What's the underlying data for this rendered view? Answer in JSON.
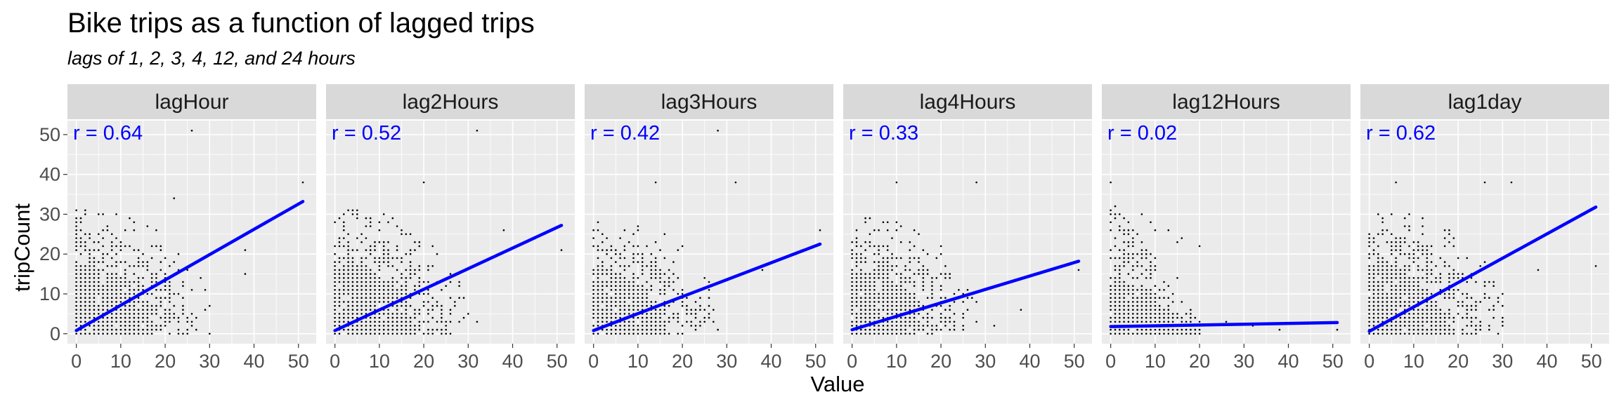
{
  "chart_data": {
    "type": "scatter",
    "title": "Bike trips as a function of lagged trips",
    "subtitle": "lags of 1, 2, 3, 4, 12, and 24 hours",
    "xlabel": "Value",
    "ylabel": "tripCount",
    "xlim": [
      -2,
      54
    ],
    "ylim": [
      -2.5,
      53.5
    ],
    "x_ticks": [
      0,
      10,
      20,
      30,
      40,
      50
    ],
    "y_ticks": [
      0,
      10,
      20,
      30,
      40,
      50
    ],
    "grid": true,
    "fit_color": "#0000FF",
    "point_color": "#000000",
    "panel_background": "#EBEBEB",
    "strip_background": "#D9D9D9",
    "panels": [
      {
        "name": "lagHour",
        "r_label": "r = 0.64",
        "fit": {
          "x": [
            0,
            51
          ],
          "y": [
            0.8,
            33.2
          ]
        },
        "max_x": 30,
        "max_y": 32,
        "outliers": [
          [
            26,
            51
          ],
          [
            51,
            38
          ],
          [
            38,
            21
          ],
          [
            38,
            15
          ],
          [
            32,
            21
          ],
          [
            22,
            34
          ]
        ]
      },
      {
        "name": "lag2Hours",
        "r_label": "r = 0.52",
        "fit": {
          "x": [
            0,
            51
          ],
          "y": [
            0.8,
            27.2
          ]
        },
        "max_x": 30,
        "max_y": 32,
        "outliers": [
          [
            32,
            51
          ],
          [
            51,
            21
          ],
          [
            38,
            26
          ],
          [
            32,
            3
          ],
          [
            20,
            38
          ]
        ]
      },
      {
        "name": "lag3Hours",
        "r_label": "r = 0.42",
        "fit": {
          "x": [
            0,
            51
          ],
          "y": [
            0.8,
            22.5
          ]
        },
        "max_x": 28,
        "max_y": 30,
        "outliers": [
          [
            28,
            51
          ],
          [
            51,
            26
          ],
          [
            32,
            38
          ],
          [
            38,
            16
          ],
          [
            14,
            38
          ]
        ]
      },
      {
        "name": "lag4Hours",
        "r_label": "r = 0.33",
        "fit": {
          "x": [
            0,
            51
          ],
          "y": [
            1.0,
            18.2
          ]
        },
        "max_x": 28,
        "max_y": 30,
        "outliers": [
          [
            51,
            16
          ],
          [
            38,
            6
          ],
          [
            28,
            38
          ],
          [
            10,
            38
          ],
          [
            32,
            2
          ]
        ]
      },
      {
        "name": "lag12Hours",
        "r_label": "r = 0.02",
        "fit": {
          "x": [
            0,
            51
          ],
          "y": [
            1.8,
            2.8
          ]
        },
        "max_x": 20,
        "max_y": 34,
        "outliers": [
          [
            0,
            38
          ],
          [
            13,
            26
          ],
          [
            26,
            3
          ],
          [
            38,
            1
          ],
          [
            51,
            1
          ],
          [
            32,
            2
          ]
        ]
      },
      {
        "name": "lag1day",
        "r_label": "r = 0.62",
        "fit": {
          "x": [
            0,
            51
          ],
          "y": [
            0.6,
            31.8
          ]
        },
        "max_x": 30,
        "max_y": 32,
        "outliers": [
          [
            51,
            17
          ],
          [
            38,
            16
          ],
          [
            26,
            38
          ],
          [
            32,
            38
          ],
          [
            6,
            38
          ]
        ]
      }
    ]
  }
}
